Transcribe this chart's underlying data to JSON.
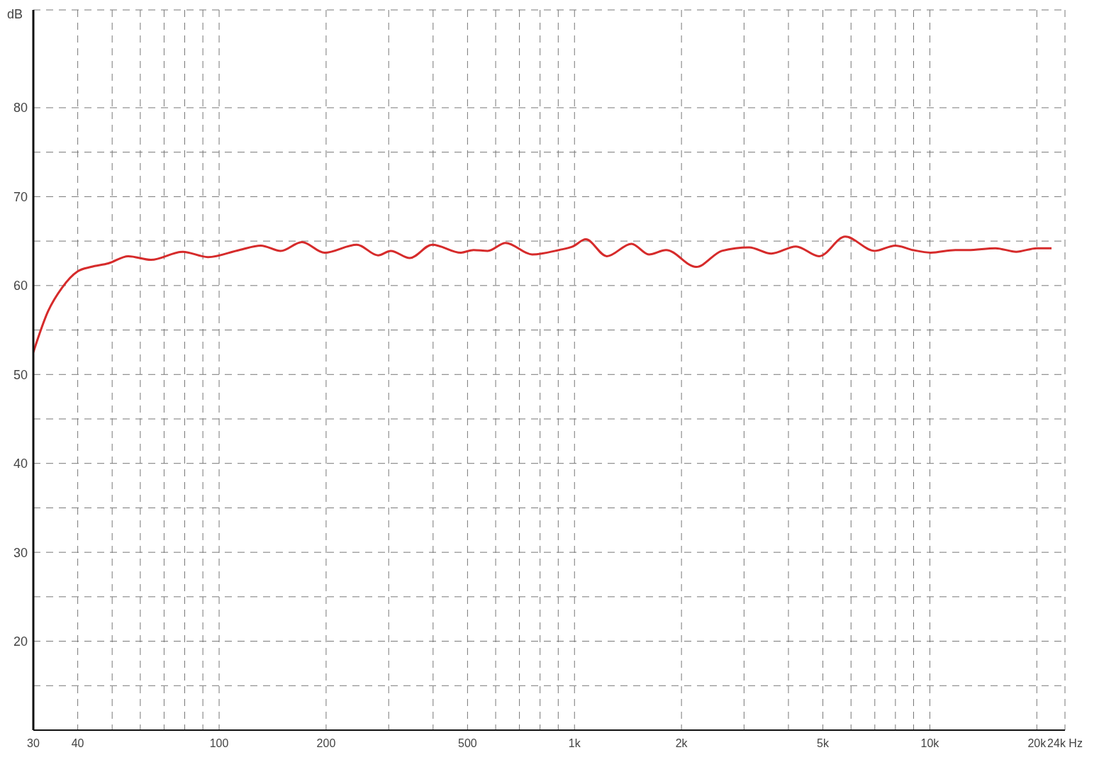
{
  "chart_data": {
    "type": "line",
    "ylabel": "dB",
    "log": "x",
    "grid": true,
    "line_style": "solid",
    "marker": "none",
    "legend": false,
    "xlim": [
      30,
      24000
    ],
    "ylim": [
      10,
      91
    ],
    "xticks": [
      30,
      40,
      {
        "value": 50,
        "label": null
      },
      {
        "value": 60,
        "label": null
      },
      {
        "value": 70,
        "label": null
      },
      {
        "value": 80,
        "label": null
      },
      {
        "value": 90,
        "label": null
      },
      100,
      200,
      {
        "value": 300,
        "label": null
      },
      {
        "value": 400,
        "label": null
      },
      500,
      {
        "value": 600,
        "label": null
      },
      {
        "value": 700,
        "label": null
      },
      {
        "value": 800,
        "label": null
      },
      {
        "value": 900,
        "label": null
      },
      {
        "value": 1000,
        "label": "1k"
      },
      {
        "value": 2000,
        "label": "2k"
      },
      {
        "value": 3000,
        "label": null
      },
      {
        "value": 4000,
        "label": null
      },
      {
        "value": 5000,
        "label": "5k"
      },
      {
        "value": 6000,
        "label": null
      },
      {
        "value": 7000,
        "label": null
      },
      {
        "value": 8000,
        "label": null
      },
      {
        "value": 9000,
        "label": null
      },
      {
        "value": 10000,
        "label": "10k"
      },
      {
        "value": 20000,
        "label": "20k"
      },
      {
        "value": 24000,
        "label": "24k Hz"
      }
    ],
    "yticks": [
      {
        "value": 15,
        "label": null
      },
      20,
      {
        "value": 25,
        "label": null
      },
      30,
      {
        "value": 35,
        "label": null
      },
      40,
      {
        "value": 45,
        "label": null
      },
      50,
      {
        "value": 55,
        "label": null
      },
      60,
      {
        "value": 65,
        "label": null
      },
      70,
      {
        "value": 75,
        "label": null
      },
      80
    ],
    "x": [
      30,
      33,
      36.2,
      40,
      43.6,
      48.8,
      55.5,
      64.3,
      79,
      93,
      114,
      131,
      149,
      171,
      198,
      244,
      280,
      304,
      344,
      398,
      479,
      520,
      570,
      640,
      760,
      905,
      990,
      1076,
      1233,
      1447,
      1620,
      1810,
      2200,
      2600,
      3100,
      3580,
      4200,
      4880,
      5780,
      6990,
      8000,
      8950,
      10050,
      11800,
      12800,
      15300,
      17500,
      20000,
      22000
    ],
    "series": [
      {
        "color": "#d62b2b",
        "values": [
          52.5,
          57.1,
          59.8,
          61.6,
          62.1,
          62.5,
          63.3,
          62.9,
          63.8,
          63.2,
          64.0,
          64.5,
          63.9,
          64.9,
          63.7,
          64.6,
          63.4,
          63.9,
          63.1,
          64.6,
          63.7,
          64.0,
          63.9,
          64.8,
          63.5,
          64.0,
          64.4,
          65.2,
          63.3,
          64.7,
          63.5,
          64.0,
          62.1,
          63.9,
          64.3,
          63.6,
          64.4,
          63.3,
          65.5,
          63.9,
          64.5,
          64.0,
          63.7,
          64.0,
          64.0,
          64.2,
          63.8,
          64.2,
          64.2
        ]
      }
    ]
  }
}
